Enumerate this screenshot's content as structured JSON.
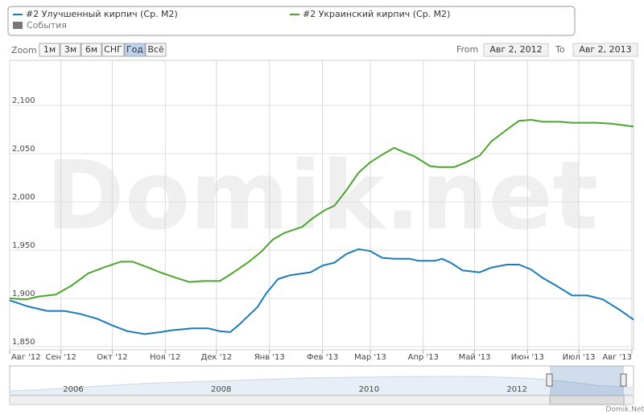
{
  "chart_data": {
    "type": "line",
    "watermark": "Domik.net",
    "credit": "Domik.Net",
    "legend_events": "События",
    "zoom": {
      "label": "Zoom",
      "buttons": [
        "1м",
        "3м",
        "6м",
        "СНГ",
        "Год",
        "Всё"
      ],
      "selected": 4
    },
    "range": {
      "from_label": "From",
      "from": "Авг 2, 2012",
      "to_label": "To",
      "to": "Авг 2, 2013"
    },
    "xlim": [
      0,
      365
    ],
    "xticks": [
      {
        "value": 0,
        "label": "Авг '12"
      },
      {
        "value": 30,
        "label": "Сен '12"
      },
      {
        "value": 60,
        "label": "Окт '12"
      },
      {
        "value": 91,
        "label": "Ноя '12"
      },
      {
        "value": 121,
        "label": "Дек '12"
      },
      {
        "value": 152,
        "label": "Янв '13"
      },
      {
        "value": 183,
        "label": "Фев '13"
      },
      {
        "value": 211,
        "label": "Мар '13"
      },
      {
        "value": 242,
        "label": "Апр '13"
      },
      {
        "value": 272,
        "label": "Май '13"
      },
      {
        "value": 303,
        "label": "Июн '13"
      },
      {
        "value": 333,
        "label": "Июл '13"
      },
      {
        "value": 364,
        "label": "Авг '13"
      }
    ],
    "ylim": [
      1846.7,
      2146.7
    ],
    "yticks": [
      {
        "value": 1850,
        "label": "1,850"
      },
      {
        "value": 1900,
        "label": "1,900"
      },
      {
        "value": 1950,
        "label": "1,950"
      },
      {
        "value": 2000,
        "label": "2,000"
      },
      {
        "value": 2050,
        "label": "2,050"
      },
      {
        "value": 2100,
        "label": "2,100"
      }
    ],
    "grid": true,
    "series": [
      {
        "name": "#2 Улучшенный кирпич (Ср. M2)",
        "color": "#1b7bb8",
        "x": [
          0,
          10,
          22,
          32,
          41,
          51,
          60,
          69,
          79,
          88,
          95,
          107,
          116,
          123,
          129,
          135,
          145,
          150,
          157,
          164,
          176,
          183,
          190,
          197,
          204,
          211,
          218,
          225,
          234,
          239,
          249,
          253,
          258,
          265,
          275,
          282,
          291,
          298,
          305,
          312,
          319,
          329,
          338,
          347,
          357,
          365
        ],
        "values": [
          1898,
          1892,
          1887,
          1887,
          1884,
          1879,
          1872,
          1866,
          1863,
          1865,
          1867,
          1869,
          1869,
          1866,
          1865,
          1874,
          1891,
          1905,
          1920,
          1924,
          1927,
          1934,
          1937,
          1946,
          1951,
          1949,
          1942,
          1941,
          1941,
          1939,
          1939,
          1941,
          1937,
          1929,
          1927,
          1932,
          1935,
          1935,
          1930,
          1921,
          1914,
          1903,
          1903,
          1899,
          1888,
          1878
        ]
      },
      {
        "name": "#2 Украинский кирпич (Ср. M2)",
        "color": "#4da52f",
        "x": [
          0,
          10,
          17,
          27,
          36,
          46,
          55,
          65,
          72,
          81,
          88,
          98,
          105,
          114,
          123,
          131,
          140,
          147,
          154,
          161,
          171,
          178,
          185,
          190,
          197,
          204,
          211,
          218,
          225,
          230,
          237,
          246,
          251,
          260,
          267,
          275,
          282,
          291,
          298,
          305,
          312,
          322,
          329,
          343,
          352,
          365
        ],
        "values": [
          1900,
          1899,
          1902,
          1904,
          1913,
          1926,
          1932,
          1938,
          1938,
          1932,
          1927,
          1921,
          1917,
          1918,
          1918,
          1927,
          1938,
          1948,
          1961,
          1968,
          1974,
          1984,
          1992,
          1996,
          2012,
          2030,
          2041,
          2049,
          2056,
          2052,
          2047,
          2037,
          2036,
          2036,
          2041,
          2048,
          2063,
          2075,
          2084,
          2085,
          2083,
          2083,
          2082,
          2082,
          2081,
          2078
        ]
      }
    ],
    "navigator": {
      "labels": [
        "2006",
        "2008",
        "2010",
        "2012"
      ]
    }
  }
}
